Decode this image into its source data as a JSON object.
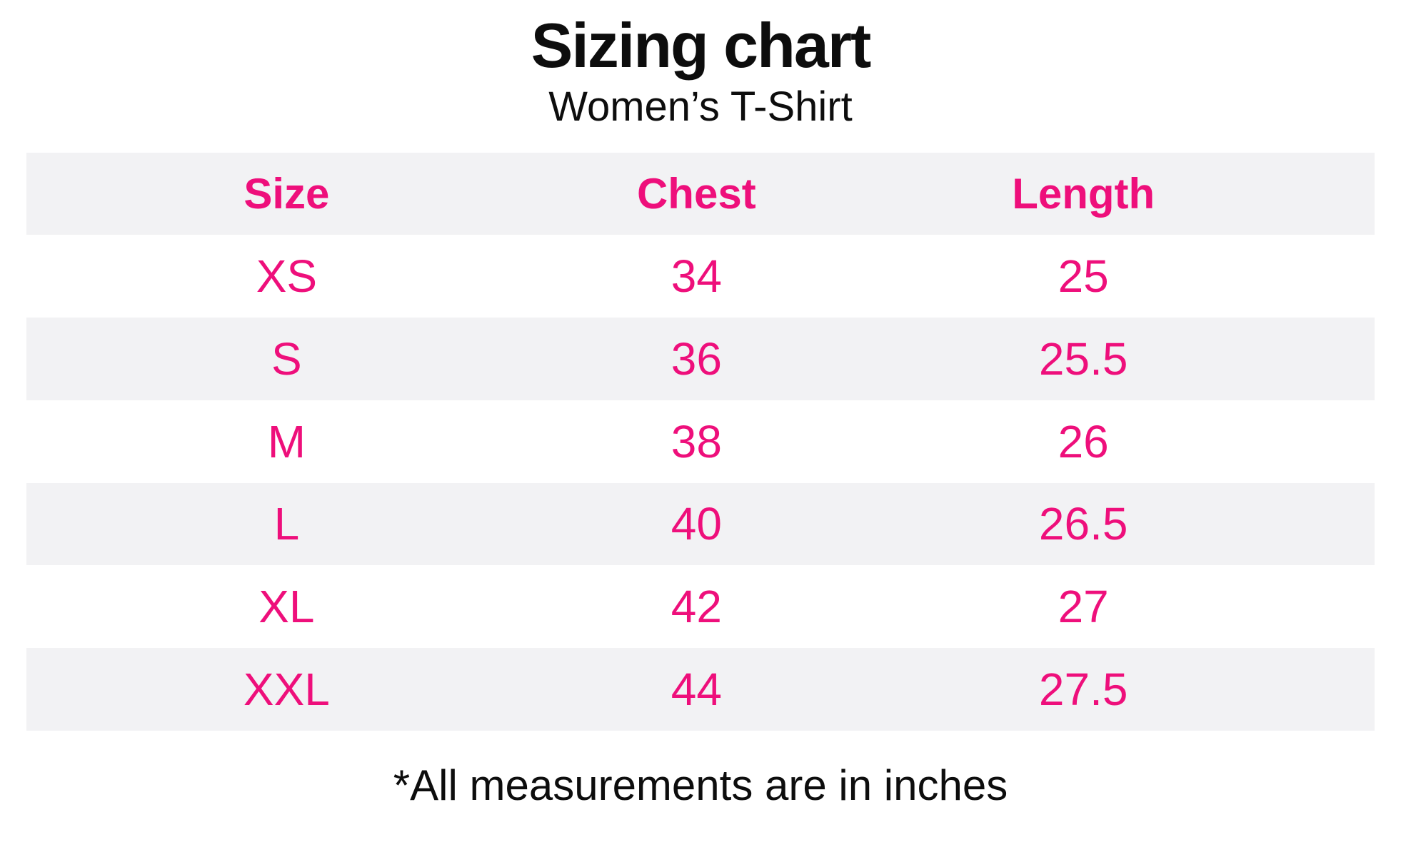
{
  "page": {
    "title": "Sizing chart",
    "subtitle": "Women’s T-Shirt",
    "footnote": "*All measurements are in inches"
  },
  "chart_data": {
    "type": "table",
    "title": "Sizing chart",
    "subtitle": "Women’s T-Shirt",
    "columns": [
      "Size",
      "Chest",
      "Length"
    ],
    "rows": [
      [
        "XS",
        "34",
        "25"
      ],
      [
        "S",
        "36",
        "25.5"
      ],
      [
        "M",
        "38",
        "26"
      ],
      [
        "L",
        "40",
        "26.5"
      ],
      [
        "XL",
        "42",
        "27"
      ],
      [
        "XXL",
        "44",
        "27.5"
      ]
    ],
    "units": "inches",
    "footnote": "*All measurements are in inches",
    "layout": {
      "header_background": "#f2f2f4",
      "row_alternation": "header gray, then white/gray alternating",
      "value_alignment": "center"
    }
  },
  "colors": {
    "accent_pink": "#ee0f7b",
    "row_gray": "#f2f2f4",
    "text_black": "#0d0d0d",
    "background": "#ffffff"
  }
}
